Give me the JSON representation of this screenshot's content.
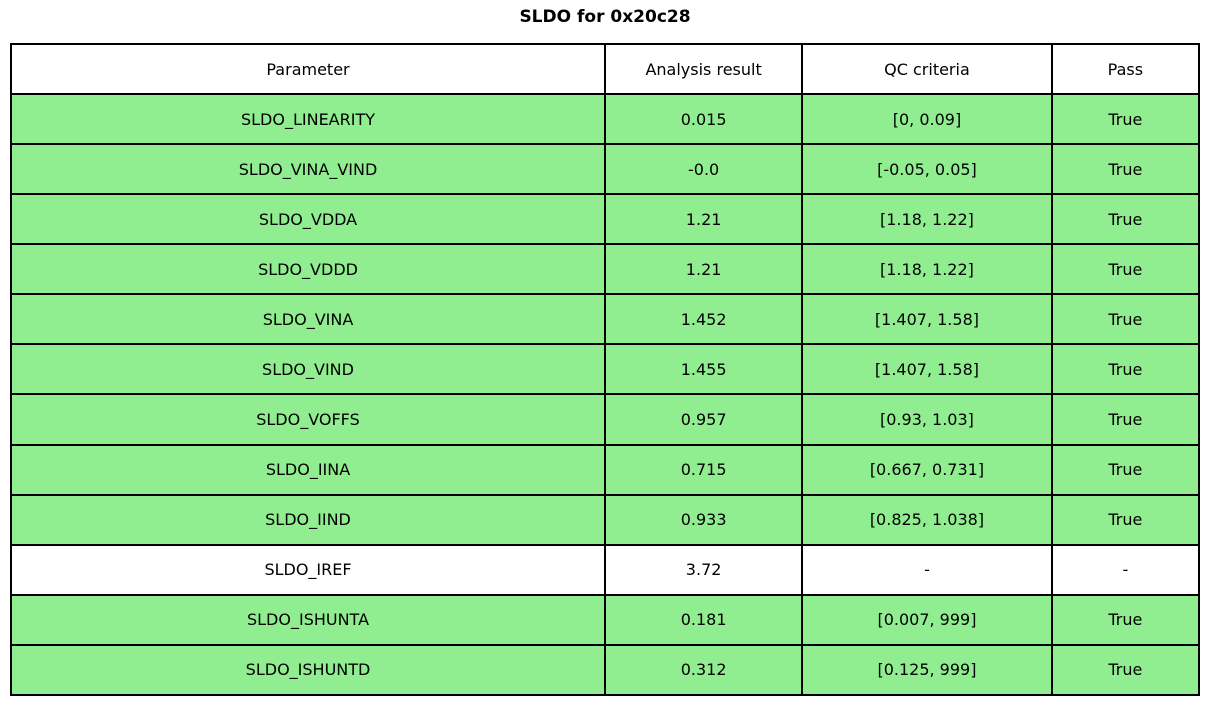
{
  "title": "SLDO for 0x20c28",
  "colors": {
    "pass_row": "#90ee90",
    "neutral_row": "#ffffff",
    "border": "#000000",
    "text": "#000000"
  },
  "table": {
    "headers": [
      "Parameter",
      "Analysis result",
      "QC criteria",
      "Pass"
    ],
    "rows": [
      {
        "parameter": "SLDO_LINEARITY",
        "result": "0.015",
        "qc": "[0, 0.09]",
        "pass": "True"
      },
      {
        "parameter": "SLDO_VINA_VIND",
        "result": "-0.0",
        "qc": "[-0.05, 0.05]",
        "pass": "True"
      },
      {
        "parameter": "SLDO_VDDA",
        "result": "1.21",
        "qc": "[1.18, 1.22]",
        "pass": "True"
      },
      {
        "parameter": "SLDO_VDDD",
        "result": "1.21",
        "qc": "[1.18, 1.22]",
        "pass": "True"
      },
      {
        "parameter": "SLDO_VINA",
        "result": "1.452",
        "qc": "[1.407, 1.58]",
        "pass": "True"
      },
      {
        "parameter": "SLDO_VIND",
        "result": "1.455",
        "qc": "[1.407, 1.58]",
        "pass": "True"
      },
      {
        "parameter": "SLDO_VOFFS",
        "result": "0.957",
        "qc": "[0.93, 1.03]",
        "pass": "True"
      },
      {
        "parameter": "SLDO_IINA",
        "result": "0.715",
        "qc": "[0.667, 0.731]",
        "pass": "True"
      },
      {
        "parameter": "SLDO_IIND",
        "result": "0.933",
        "qc": "[0.825, 1.038]",
        "pass": "True"
      },
      {
        "parameter": "SLDO_IREF",
        "result": "3.72",
        "qc": "-",
        "pass": "-"
      },
      {
        "parameter": "SLDO_ISHUNTA",
        "result": "0.181",
        "qc": "[0.007, 999]",
        "pass": "True"
      },
      {
        "parameter": "SLDO_ISHUNTD",
        "result": "0.312",
        "qc": "[0.125, 999]",
        "pass": "True"
      }
    ]
  }
}
